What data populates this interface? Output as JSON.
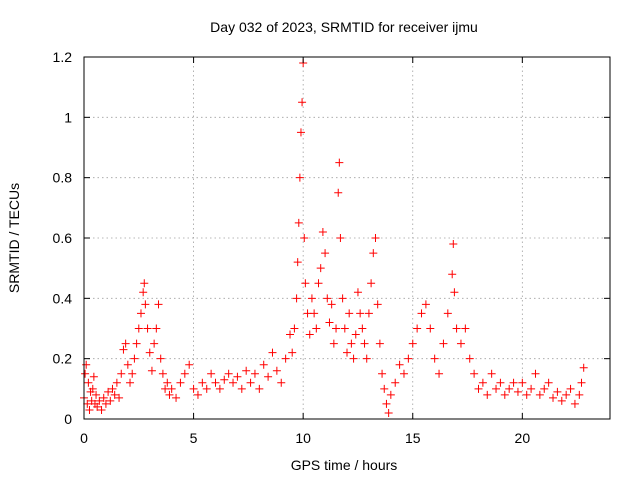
{
  "chart_data": {
    "type": "scatter",
    "title": "Day 032 of 2023, SRMTID for receiver ijmu",
    "xlabel": "GPS time / hours",
    "ylabel": "SRMTID / TECUs",
    "xlim": [
      0,
      24
    ],
    "ylim": [
      0,
      1.2
    ],
    "xticks": [
      0,
      5,
      10,
      15,
      20
    ],
    "xtick_labels": [
      "0",
      "5",
      "10",
      "15",
      "20"
    ],
    "yticks": [
      0,
      0.2,
      0.4,
      0.6,
      0.8,
      1.0,
      1.2
    ],
    "ytick_labels": [
      "0",
      "0.2",
      "0.4",
      "0.6",
      "0.8",
      "1",
      "1.2"
    ],
    "grid": true,
    "marker": "+",
    "color": "#ff0000",
    "series": [
      {
        "name": "SRMTID",
        "points": [
          [
            0.0,
            0.07
          ],
          [
            0.05,
            0.15
          ],
          [
            0.1,
            0.18
          ],
          [
            0.15,
            0.05
          ],
          [
            0.2,
            0.12
          ],
          [
            0.25,
            0.03
          ],
          [
            0.3,
            0.09
          ],
          [
            0.35,
            0.06
          ],
          [
            0.4,
            0.1
          ],
          [
            0.45,
            0.14
          ],
          [
            0.5,
            0.05
          ],
          [
            0.55,
            0.08
          ],
          [
            0.6,
            0.04
          ],
          [
            0.7,
            0.06
          ],
          [
            0.8,
            0.03
          ],
          [
            0.9,
            0.07
          ],
          [
            1.0,
            0.05
          ],
          [
            1.1,
            0.09
          ],
          [
            1.2,
            0.06
          ],
          [
            1.3,
            0.1
          ],
          [
            1.4,
            0.08
          ],
          [
            1.5,
            0.12
          ],
          [
            1.6,
            0.07
          ],
          [
            1.7,
            0.15
          ],
          [
            1.8,
            0.23
          ],
          [
            1.9,
            0.25
          ],
          [
            2.0,
            0.18
          ],
          [
            2.1,
            0.12
          ],
          [
            2.2,
            0.15
          ],
          [
            2.3,
            0.2
          ],
          [
            2.4,
            0.25
          ],
          [
            2.5,
            0.3
          ],
          [
            2.6,
            0.35
          ],
          [
            2.7,
            0.42
          ],
          [
            2.75,
            0.45
          ],
          [
            2.8,
            0.38
          ],
          [
            2.9,
            0.3
          ],
          [
            3.0,
            0.22
          ],
          [
            3.1,
            0.16
          ],
          [
            3.2,
            0.25
          ],
          [
            3.3,
            0.3
          ],
          [
            3.4,
            0.38
          ],
          [
            3.5,
            0.2
          ],
          [
            3.6,
            0.15
          ],
          [
            3.7,
            0.1
          ],
          [
            3.8,
            0.12
          ],
          [
            3.9,
            0.08
          ],
          [
            4.0,
            0.1
          ],
          [
            4.2,
            0.07
          ],
          [
            4.4,
            0.12
          ],
          [
            4.6,
            0.15
          ],
          [
            4.8,
            0.18
          ],
          [
            5.0,
            0.1
          ],
          [
            5.2,
            0.08
          ],
          [
            5.4,
            0.12
          ],
          [
            5.6,
            0.1
          ],
          [
            5.8,
            0.15
          ],
          [
            6.0,
            0.12
          ],
          [
            6.2,
            0.1
          ],
          [
            6.4,
            0.13
          ],
          [
            6.6,
            0.15
          ],
          [
            6.8,
            0.12
          ],
          [
            7.0,
            0.14
          ],
          [
            7.2,
            0.1
          ],
          [
            7.4,
            0.16
          ],
          [
            7.6,
            0.12
          ],
          [
            7.8,
            0.15
          ],
          [
            8.0,
            0.1
          ],
          [
            8.2,
            0.18
          ],
          [
            8.4,
            0.14
          ],
          [
            8.6,
            0.22
          ],
          [
            8.8,
            0.16
          ],
          [
            9.0,
            0.12
          ],
          [
            9.2,
            0.2
          ],
          [
            9.4,
            0.28
          ],
          [
            9.5,
            0.22
          ],
          [
            9.6,
            0.3
          ],
          [
            9.7,
            0.4
          ],
          [
            9.75,
            0.52
          ],
          [
            9.8,
            0.65
          ],
          [
            9.85,
            0.8
          ],
          [
            9.9,
            0.95
          ],
          [
            9.95,
            1.05
          ],
          [
            10.0,
            1.18
          ],
          [
            10.05,
            0.6
          ],
          [
            10.1,
            0.45
          ],
          [
            10.2,
            0.35
          ],
          [
            10.3,
            0.28
          ],
          [
            10.4,
            0.4
          ],
          [
            10.5,
            0.35
          ],
          [
            10.6,
            0.3
          ],
          [
            10.7,
            0.45
          ],
          [
            10.8,
            0.5
          ],
          [
            10.9,
            0.62
          ],
          [
            11.0,
            0.55
          ],
          [
            11.1,
            0.4
          ],
          [
            11.2,
            0.32
          ],
          [
            11.3,
            0.38
          ],
          [
            11.4,
            0.25
          ],
          [
            11.5,
            0.3
          ],
          [
            11.6,
            0.75
          ],
          [
            11.65,
            0.85
          ],
          [
            11.7,
            0.6
          ],
          [
            11.8,
            0.4
          ],
          [
            11.9,
            0.3
          ],
          [
            12.0,
            0.22
          ],
          [
            12.1,
            0.35
          ],
          [
            12.2,
            0.25
          ],
          [
            12.3,
            0.2
          ],
          [
            12.4,
            0.28
          ],
          [
            12.5,
            0.42
          ],
          [
            12.6,
            0.35
          ],
          [
            12.7,
            0.3
          ],
          [
            12.8,
            0.25
          ],
          [
            12.9,
            0.2
          ],
          [
            13.0,
            0.35
          ],
          [
            13.1,
            0.45
          ],
          [
            13.2,
            0.55
          ],
          [
            13.3,
            0.6
          ],
          [
            13.4,
            0.38
          ],
          [
            13.5,
            0.25
          ],
          [
            13.6,
            0.15
          ],
          [
            13.7,
            0.1
          ],
          [
            13.8,
            0.05
          ],
          [
            13.9,
            0.02
          ],
          [
            14.0,
            0.08
          ],
          [
            14.2,
            0.12
          ],
          [
            14.4,
            0.18
          ],
          [
            14.6,
            0.15
          ],
          [
            14.8,
            0.2
          ],
          [
            15.0,
            0.25
          ],
          [
            15.2,
            0.3
          ],
          [
            15.4,
            0.35
          ],
          [
            15.6,
            0.38
          ],
          [
            15.8,
            0.3
          ],
          [
            16.0,
            0.2
          ],
          [
            16.2,
            0.15
          ],
          [
            16.4,
            0.25
          ],
          [
            16.6,
            0.35
          ],
          [
            16.8,
            0.48
          ],
          [
            16.85,
            0.58
          ],
          [
            16.9,
            0.42
          ],
          [
            17.0,
            0.3
          ],
          [
            17.2,
            0.25
          ],
          [
            17.4,
            0.3
          ],
          [
            17.6,
            0.2
          ],
          [
            17.8,
            0.15
          ],
          [
            18.0,
            0.1
          ],
          [
            18.2,
            0.12
          ],
          [
            18.4,
            0.08
          ],
          [
            18.6,
            0.15
          ],
          [
            18.8,
            0.1
          ],
          [
            19.0,
            0.12
          ],
          [
            19.2,
            0.08
          ],
          [
            19.4,
            0.1
          ],
          [
            19.6,
            0.12
          ],
          [
            19.8,
            0.09
          ],
          [
            20.0,
            0.12
          ],
          [
            20.2,
            0.08
          ],
          [
            20.4,
            0.1
          ],
          [
            20.6,
            0.15
          ],
          [
            20.8,
            0.08
          ],
          [
            21.0,
            0.1
          ],
          [
            21.2,
            0.12
          ],
          [
            21.4,
            0.07
          ],
          [
            21.6,
            0.09
          ],
          [
            21.8,
            0.06
          ],
          [
            22.0,
            0.08
          ],
          [
            22.2,
            0.1
          ],
          [
            22.4,
            0.05
          ],
          [
            22.6,
            0.08
          ],
          [
            22.7,
            0.12
          ],
          [
            22.8,
            0.17
          ]
        ]
      }
    ]
  }
}
